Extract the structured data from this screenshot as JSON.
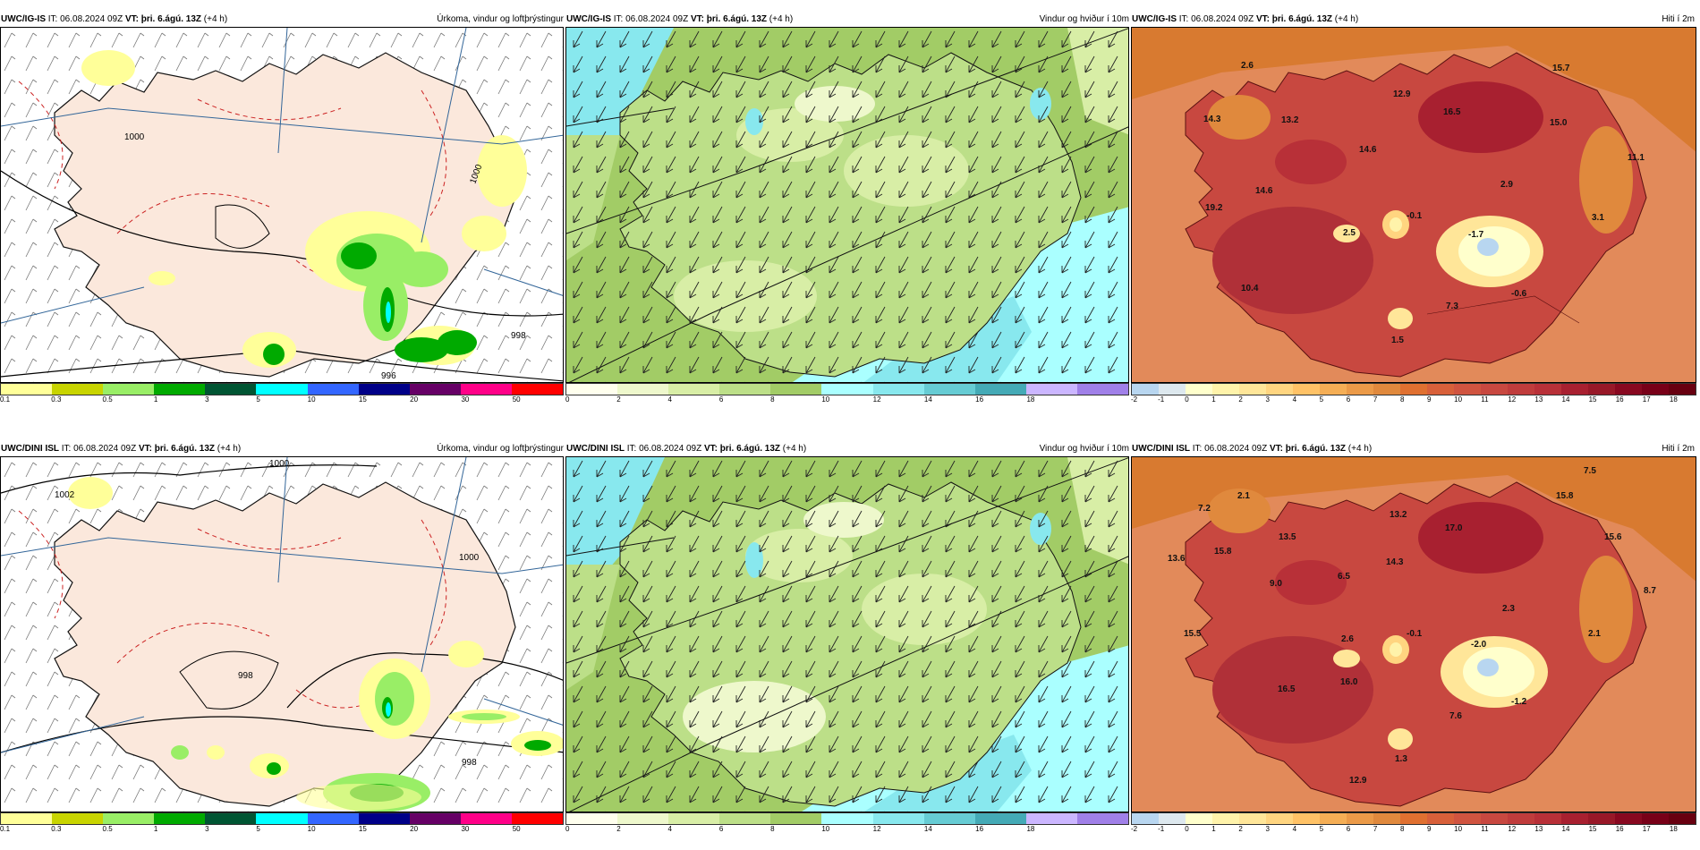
{
  "rows": [
    {
      "model": "UWC/IG-IS",
      "it_label": "IT:",
      "it_value": "06.08.2024 09Z",
      "vt_label": "VT:",
      "vt_value": "þri. 6.ágú. 13Z",
      "lead": "(+4 h)",
      "temp_values": [
        "2.6",
        "12.9",
        "15.7",
        "14.3",
        "13.2",
        "16.5",
        "15.0",
        "14.6",
        "11.1",
        "14.6",
        "2.9",
        "19.2",
        "2.5",
        "-0.1",
        "3.1",
        "-1.7",
        "10.4",
        "7.3",
        "-0.6",
        "1.5"
      ],
      "pressure_labels": [
        "1000",
        "998",
        "996",
        "1000"
      ]
    },
    {
      "model": "UWC/DINI ISL",
      "it_label": "IT:",
      "it_value": "06.08.2024 09Z",
      "vt_label": "VT:",
      "vt_value": "þri. 6.ágú. 13Z",
      "lead": "(+4 h)",
      "temp_values": [
        "7.5",
        "7.2",
        "2.1",
        "15.8",
        "13.2",
        "17.0",
        "13.6",
        "15.8",
        "13.5",
        "15.6",
        "14.3",
        "9.0",
        "6.5",
        "8.7",
        "2.3",
        "15.5",
        "2.6",
        "-0.1",
        "-2.0",
        "2.1",
        "16.5",
        "16.0",
        "-1.2",
        "7.6",
        "1.3",
        "12.9"
      ],
      "pressure_labels": [
        "1000",
        "1002",
        "1000",
        "998",
        "998"
      ]
    }
  ],
  "panels": [
    {
      "title": "Úrkoma, vindur og loftþrýstingur"
    },
    {
      "title": "Vindur og hviður í 10m"
    },
    {
      "title": "Hiti í 2m"
    }
  ],
  "colorbars": {
    "precip": {
      "labels": [
        "0.1",
        "0.3",
        "0.5",
        "1",
        "3",
        "5",
        "10",
        "15",
        "20",
        "30",
        "50"
      ],
      "colors": [
        "#ffff99",
        "#c8d400",
        "#99ee66",
        "#00aa00",
        "#005533",
        "#00ffff",
        "#3366ff",
        "#000088",
        "#660066",
        "#ff0088",
        "#ff0000"
      ]
    },
    "wind": {
      "labels": [
        "0",
        "2",
        "4",
        "6",
        "8",
        "10",
        "12",
        "14",
        "16",
        "18"
      ],
      "colors": [
        "#ffffee",
        "#eef8cc",
        "#d8eea6",
        "#bcdf88",
        "#a2cc66",
        "#aaffff",
        "#88e8ee",
        "#66ccd4",
        "#44aab6",
        "#cbb6ff",
        "#a080e8"
      ]
    },
    "temp": {
      "labels": [
        "-2",
        "-1",
        "0",
        "1",
        "2",
        "3",
        "4",
        "5",
        "6",
        "7",
        "8",
        "9",
        "10",
        "11",
        "12",
        "13",
        "14",
        "15",
        "16",
        "17",
        "18"
      ],
      "colors": [
        "#b8d6f0",
        "#dde8ee",
        "#ffffcc",
        "#fff3aa",
        "#ffe699",
        "#ffd580",
        "#ffc266",
        "#f5ae55",
        "#eb9a48",
        "#e0893d",
        "#e07030",
        "#d8603a",
        "#d05440",
        "#c84840",
        "#c03c3c",
        "#b83038",
        "#a82030",
        "#981828",
        "#880820",
        "#780018",
        "#680010"
      ]
    }
  }
}
